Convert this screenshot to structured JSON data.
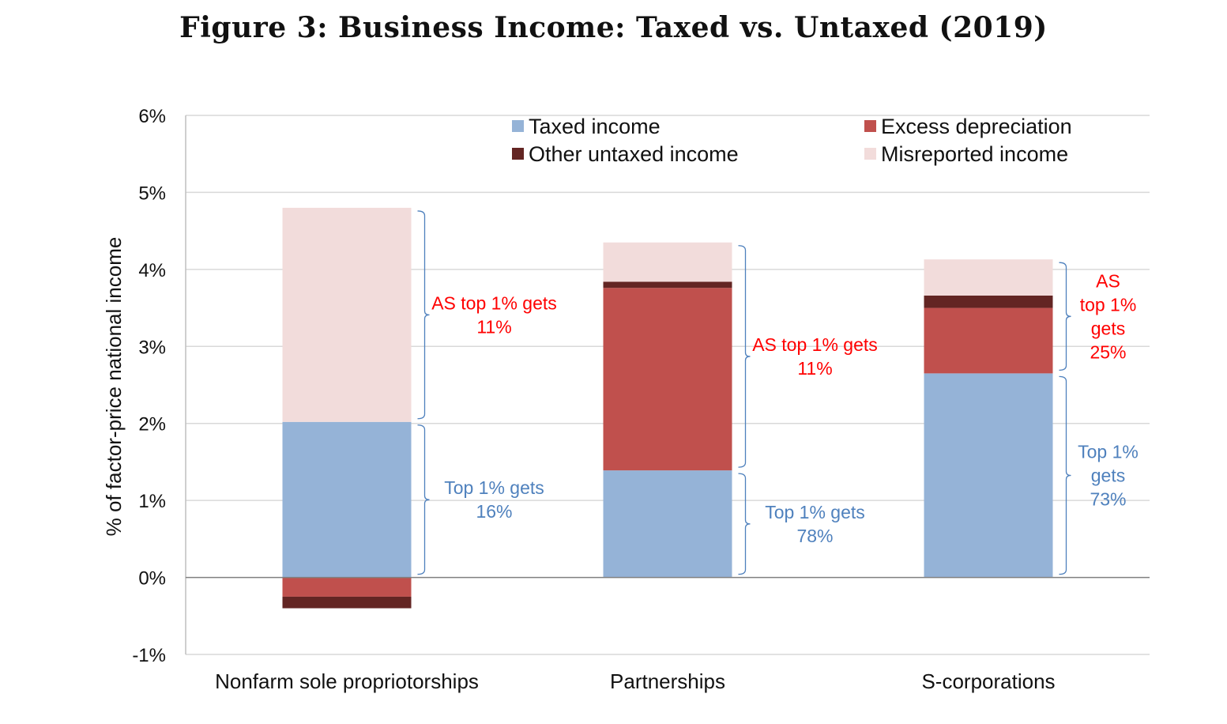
{
  "title": "Figure 3: Business Income: Taxed vs. Untaxed (2019)",
  "chart_data": {
    "type": "bar",
    "stacked": true,
    "categories": [
      "Nonfarm sole propriotorships",
      "Partnerships",
      "S-corporations"
    ],
    "ylabel": "% of factor-price national income",
    "ylim": [
      -1,
      6
    ],
    "yticks": [
      "-1%",
      "0%",
      "1%",
      "2%",
      "3%",
      "4%",
      "5%",
      "6%"
    ],
    "grid": true,
    "legend_position": "top-right",
    "series": [
      {
        "name": "Taxed income",
        "color": "#95b3d7",
        "values": [
          2.02,
          1.39,
          2.65
        ]
      },
      {
        "name": "Excess depreciation",
        "color": "#c0504d",
        "values": [
          -0.25,
          2.37,
          0.85
        ]
      },
      {
        "name": "Other untaxed income",
        "color": "#632523",
        "values": [
          -0.15,
          0.08,
          0.16
        ]
      },
      {
        "name": "Misreported income",
        "color": "#f2dcdb",
        "values": [
          2.78,
          0.51,
          0.47
        ]
      }
    ],
    "annotations": [
      {
        "category": 0,
        "group": "untaxed",
        "lines": [
          "AS top 1% gets",
          "11%"
        ],
        "color": "#ff0000"
      },
      {
        "category": 0,
        "group": "taxed",
        "lines": [
          "Top 1% gets",
          "16%"
        ],
        "color": "#4f81bd"
      },
      {
        "category": 1,
        "group": "untaxed",
        "lines": [
          "AS top 1% gets",
          "11%"
        ],
        "color": "#ff0000"
      },
      {
        "category": 1,
        "group": "taxed",
        "lines": [
          "Top 1% gets",
          "78%"
        ],
        "color": "#4f81bd"
      },
      {
        "category": 2,
        "group": "untaxed",
        "lines": [
          "AS",
          "top 1%",
          "gets",
          "25%"
        ],
        "color": "#ff0000"
      },
      {
        "category": 2,
        "group": "taxed",
        "lines": [
          "Top 1%",
          "gets",
          "73%"
        ],
        "color": "#4f81bd"
      }
    ]
  }
}
